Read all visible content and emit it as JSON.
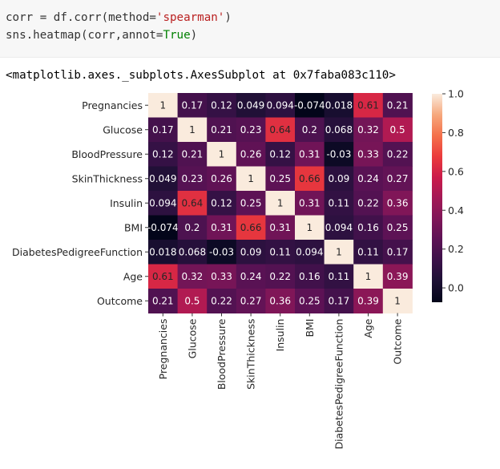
{
  "cell": {
    "line1": {
      "prefix": "corr = df.corr(method=",
      "string": "'spearman'",
      "suffix": ")"
    },
    "line2": {
      "prefix": "sns.heatmap(corr,annot=",
      "const": "True",
      "suffix": ")"
    }
  },
  "output_text": "<matplotlib.axes._subplots.AxesSubplot at 0x7faba083c110>",
  "colors": {
    "cell_bg": "#f7f7f7",
    "string": "#ba2121",
    "keyword_const": "#008000"
  },
  "chart_data": {
    "type": "heatmap",
    "colormap": "rocket",
    "categories": [
      "Pregnancies",
      "Glucose",
      "BloodPressure",
      "SkinThickness",
      "Insulin",
      "BMI",
      "DiabetesPedigreeFunction",
      "Age",
      "Outcome"
    ],
    "values": [
      [
        1,
        0.17,
        0.12,
        0.049,
        0.094,
        -0.074,
        0.018,
        0.61,
        0.21
      ],
      [
        0.17,
        1,
        0.21,
        0.23,
        0.64,
        0.2,
        0.068,
        0.32,
        0.5
      ],
      [
        0.12,
        0.21,
        1,
        0.26,
        0.12,
        0.31,
        -0.03,
        0.33,
        0.22
      ],
      [
        0.049,
        0.23,
        0.26,
        1,
        0.25,
        0.66,
        0.09,
        0.24,
        0.27
      ],
      [
        0.094,
        0.64,
        0.12,
        0.25,
        1,
        0.31,
        0.11,
        0.22,
        0.36
      ],
      [
        -0.074,
        0.2,
        0.31,
        0.66,
        0.31,
        1,
        0.094,
        0.16,
        0.25
      ],
      [
        0.018,
        0.068,
        -0.03,
        0.09,
        0.11,
        0.094,
        1,
        0.11,
        0.17
      ],
      [
        0.61,
        0.32,
        0.33,
        0.24,
        0.22,
        0.16,
        0.11,
        1,
        0.39
      ],
      [
        0.21,
        0.5,
        0.22,
        0.27,
        0.36,
        0.25,
        0.17,
        0.39,
        1
      ]
    ],
    "cell_labels": [
      [
        "1",
        "0.17",
        "0.12",
        "0.049",
        "0.094",
        "-0.074",
        "0.018",
        "0.61",
        "0.21"
      ],
      [
        "0.17",
        "1",
        "0.21",
        "0.23",
        "0.64",
        "0.2",
        "0.068",
        "0.32",
        "0.5"
      ],
      [
        "0.12",
        "0.21",
        "1",
        "0.26",
        "0.12",
        "0.31",
        "-0.03",
        "0.33",
        "0.22"
      ],
      [
        "0.049",
        "0.23",
        "0.26",
        "1",
        "0.25",
        "0.66",
        "0.09",
        "0.24",
        "0.27"
      ],
      [
        "0.094",
        "0.64",
        "0.12",
        "0.25",
        "1",
        "0.31",
        "0.11",
        "0.22",
        "0.36"
      ],
      [
        "-0.074",
        "0.2",
        "0.31",
        "0.66",
        "0.31",
        "1",
        "0.094",
        "0.16",
        "0.25"
      ],
      [
        "0.018",
        "0.068",
        "-0.03",
        "0.09",
        "0.11",
        "0.094",
        "1",
        "0.11",
        "0.17"
      ],
      [
        "0.61",
        "0.32",
        "0.33",
        "0.24",
        "0.22",
        "0.16",
        "0.11",
        "1",
        "0.39"
      ],
      [
        "0.21",
        "0.5",
        "0.22",
        "0.27",
        "0.36",
        "0.25",
        "0.17",
        "0.39",
        "1"
      ]
    ],
    "colorbar": {
      "range": [
        -0.074,
        1
      ],
      "ticks": [
        0.0,
        0.2,
        0.4,
        0.6,
        0.8,
        1.0
      ],
      "tick_labels": [
        "0.0",
        "0.2",
        "0.4",
        "0.6",
        "0.8",
        "1.0"
      ]
    },
    "title": "",
    "xlabel": "",
    "ylabel": ""
  }
}
